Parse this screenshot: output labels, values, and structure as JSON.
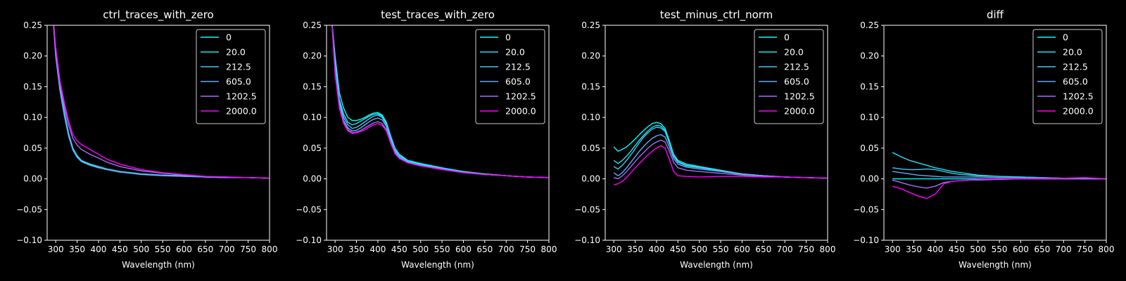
{
  "colors": {
    "background": "#000000",
    "foreground": "#ffffff",
    "legend_edge": "#cccccc"
  },
  "chart_data": [
    {
      "type": "line",
      "title": "ctrl_traces_with_zero",
      "xlabel": "Wavelength (nm)",
      "ylabel": "",
      "xlim": [
        280,
        800
      ],
      "ylim": [
        -0.1,
        0.25
      ],
      "xticks": [
        300,
        350,
        400,
        450,
        500,
        550,
        600,
        650,
        700,
        750,
        800
      ],
      "yticks": [
        -0.1,
        -0.05,
        0.0,
        0.05,
        0.1,
        0.15,
        0.2,
        0.25
      ],
      "xtick_labels": [
        "300",
        "350",
        "400",
        "450",
        "500",
        "550",
        "600",
        "650",
        "700",
        "750",
        "800"
      ],
      "ytick_labels": [
        "−0.10",
        "−0.05",
        "0.00",
        "0.05",
        "0.10",
        "0.15",
        "0.20",
        "0.25"
      ],
      "legend_position": "upper-right",
      "x": [
        290,
        300,
        310,
        320,
        330,
        340,
        350,
        360,
        380,
        400,
        420,
        450,
        500,
        550,
        600,
        650,
        700,
        750,
        800
      ],
      "series": [
        {
          "name": "0",
          "color": "#00ffff",
          "values": [
            0.3,
            0.21,
            0.15,
            0.11,
            0.075,
            0.05,
            0.038,
            0.03,
            0.024,
            0.02,
            0.016,
            0.012,
            0.008,
            0.006,
            0.005,
            0.003,
            0.002,
            0.002,
            0.001
          ]
        },
        {
          "name": "20.0",
          "color": "#1ae5f5",
          "values": [
            0.3,
            0.2,
            0.145,
            0.105,
            0.072,
            0.048,
            0.036,
            0.029,
            0.023,
            0.019,
            0.015,
            0.011,
            0.008,
            0.006,
            0.004,
            0.003,
            0.002,
            0.002,
            0.001
          ]
        },
        {
          "name": "212.5",
          "color": "#40c8f5",
          "values": [
            0.3,
            0.205,
            0.148,
            0.108,
            0.074,
            0.05,
            0.037,
            0.03,
            0.024,
            0.02,
            0.016,
            0.012,
            0.008,
            0.006,
            0.005,
            0.003,
            0.002,
            0.002,
            0.001
          ]
        },
        {
          "name": "605.0",
          "color": "#66a8f5",
          "values": [
            0.3,
            0.2,
            0.143,
            0.103,
            0.07,
            0.047,
            0.035,
            0.028,
            0.022,
            0.018,
            0.015,
            0.011,
            0.007,
            0.005,
            0.004,
            0.003,
            0.002,
            0.002,
            0.001
          ]
        },
        {
          "name": "1202.5",
          "color": "#a070f5",
          "values": [
            0.3,
            0.21,
            0.155,
            0.118,
            0.088,
            0.066,
            0.055,
            0.048,
            0.04,
            0.034,
            0.027,
            0.02,
            0.013,
            0.009,
            0.006,
            0.004,
            0.003,
            0.002,
            0.001
          ]
        },
        {
          "name": "2000.0",
          "color": "#ff00ff",
          "values": [
            0.3,
            0.215,
            0.16,
            0.125,
            0.095,
            0.072,
            0.062,
            0.056,
            0.048,
            0.04,
            0.032,
            0.024,
            0.015,
            0.01,
            0.007,
            0.004,
            0.003,
            0.002,
            0.001
          ]
        }
      ]
    },
    {
      "type": "line",
      "title": "test_traces_with_zero",
      "xlabel": "Wavelength (nm)",
      "ylabel": "",
      "xlim": [
        280,
        800
      ],
      "ylim": [
        -0.1,
        0.25
      ],
      "xticks": [
        300,
        350,
        400,
        450,
        500,
        550,
        600,
        650,
        700,
        750,
        800
      ],
      "yticks": [
        -0.1,
        -0.05,
        0.0,
        0.05,
        0.1,
        0.15,
        0.2,
        0.25
      ],
      "xtick_labels": [
        "300",
        "350",
        "400",
        "450",
        "500",
        "550",
        "600",
        "650",
        "700",
        "750",
        "800"
      ],
      "ytick_labels": [
        "−0.10",
        "−0.05",
        "0.00",
        "0.05",
        "0.10",
        "0.15",
        "0.20",
        "0.25"
      ],
      "legend_position": "upper-right",
      "x": [
        292,
        300,
        310,
        320,
        330,
        340,
        350,
        360,
        370,
        380,
        390,
        400,
        410,
        420,
        430,
        440,
        450,
        470,
        500,
        550,
        600,
        650,
        700,
        750,
        800
      ],
      "series": [
        {
          "name": "0",
          "color": "#00ffff",
          "values": [
            0.26,
            0.2,
            0.14,
            0.115,
            0.1,
            0.095,
            0.095,
            0.097,
            0.1,
            0.104,
            0.107,
            0.108,
            0.104,
            0.092,
            0.07,
            0.05,
            0.04,
            0.03,
            0.025,
            0.018,
            0.012,
            0.008,
            0.005,
            0.003,
            0.002
          ]
        },
        {
          "name": "20.0",
          "color": "#1ae5f5",
          "values": [
            0.26,
            0.19,
            0.13,
            0.105,
            0.092,
            0.088,
            0.09,
            0.094,
            0.098,
            0.102,
            0.105,
            0.106,
            0.102,
            0.09,
            0.068,
            0.048,
            0.038,
            0.029,
            0.024,
            0.017,
            0.011,
            0.008,
            0.005,
            0.003,
            0.002
          ]
        },
        {
          "name": "212.5",
          "color": "#40c8f5",
          "values": [
            0.26,
            0.185,
            0.125,
            0.1,
            0.088,
            0.082,
            0.084,
            0.088,
            0.093,
            0.098,
            0.102,
            0.104,
            0.1,
            0.088,
            0.066,
            0.046,
            0.037,
            0.028,
            0.023,
            0.017,
            0.011,
            0.008,
            0.005,
            0.003,
            0.002
          ]
        },
        {
          "name": "605.0",
          "color": "#66a8f5",
          "values": [
            0.26,
            0.18,
            0.12,
            0.095,
            0.083,
            0.078,
            0.079,
            0.083,
            0.088,
            0.093,
            0.097,
            0.099,
            0.096,
            0.085,
            0.063,
            0.044,
            0.035,
            0.027,
            0.022,
            0.016,
            0.011,
            0.007,
            0.005,
            0.003,
            0.002
          ]
        },
        {
          "name": "1202.5",
          "color": "#a070f5",
          "values": [
            0.26,
            0.175,
            0.118,
            0.092,
            0.08,
            0.075,
            0.076,
            0.079,
            0.083,
            0.087,
            0.091,
            0.093,
            0.09,
            0.08,
            0.06,
            0.042,
            0.034,
            0.026,
            0.021,
            0.016,
            0.01,
            0.007,
            0.005,
            0.003,
            0.002
          ]
        },
        {
          "name": "2000.0",
          "color": "#ff00ff",
          "values": [
            0.26,
            0.17,
            0.115,
            0.09,
            0.078,
            0.074,
            0.075,
            0.077,
            0.08,
            0.084,
            0.088,
            0.09,
            0.087,
            0.078,
            0.058,
            0.041,
            0.033,
            0.026,
            0.021,
            0.015,
            0.01,
            0.007,
            0.005,
            0.003,
            0.002
          ]
        }
      ]
    },
    {
      "type": "line",
      "title": "test_minus_ctrl_norm",
      "xlabel": "Wavelength (nm)",
      "ylabel": "",
      "xlim": [
        280,
        800
      ],
      "ylim": [
        -0.1,
        0.25
      ],
      "xticks": [
        300,
        350,
        400,
        450,
        500,
        550,
        600,
        650,
        700,
        750,
        800
      ],
      "yticks": [
        -0.1,
        -0.05,
        0.0,
        0.05,
        0.1,
        0.15,
        0.2,
        0.25
      ],
      "xtick_labels": [
        "300",
        "350",
        "400",
        "450",
        "500",
        "550",
        "600",
        "650",
        "700",
        "750",
        "800"
      ],
      "ytick_labels": [
        "−0.10",
        "−0.05",
        "0.00",
        "0.05",
        "0.10",
        "0.15",
        "0.20",
        "0.25"
      ],
      "legend_position": "upper-right",
      "x": [
        300,
        310,
        320,
        330,
        340,
        350,
        360,
        370,
        380,
        390,
        400,
        410,
        420,
        430,
        440,
        450,
        470,
        500,
        550,
        600,
        650,
        700,
        750,
        800
      ],
      "series": [
        {
          "name": "0",
          "color": "#00ffff",
          "values": [
            0.052,
            0.045,
            0.048,
            0.052,
            0.058,
            0.065,
            0.072,
            0.079,
            0.085,
            0.09,
            0.092,
            0.09,
            0.082,
            0.062,
            0.04,
            0.03,
            0.024,
            0.02,
            0.014,
            0.008,
            0.005,
            0.003,
            0.002,
            0.001
          ]
        },
        {
          "name": "20.0",
          "color": "#1ae5f5",
          "values": [
            0.03,
            0.025,
            0.03,
            0.037,
            0.045,
            0.054,
            0.063,
            0.071,
            0.078,
            0.084,
            0.087,
            0.086,
            0.079,
            0.06,
            0.038,
            0.028,
            0.022,
            0.019,
            0.013,
            0.008,
            0.005,
            0.003,
            0.002,
            0.001
          ]
        },
        {
          "name": "212.5",
          "color": "#40c8f5",
          "values": [
            0.02,
            0.016,
            0.022,
            0.03,
            0.039,
            0.049,
            0.059,
            0.068,
            0.075,
            0.081,
            0.084,
            0.083,
            0.077,
            0.058,
            0.037,
            0.027,
            0.021,
            0.018,
            0.013,
            0.008,
            0.005,
            0.003,
            0.002,
            0.001
          ]
        },
        {
          "name": "605.0",
          "color": "#66a8f5",
          "values": [
            0.01,
            0.005,
            0.01,
            0.018,
            0.027,
            0.036,
            0.045,
            0.053,
            0.06,
            0.066,
            0.07,
            0.072,
            0.068,
            0.052,
            0.033,
            0.024,
            0.019,
            0.016,
            0.012,
            0.007,
            0.004,
            0.003,
            0.002,
            0.001
          ]
        },
        {
          "name": "1202.5",
          "color": "#a070f5",
          "values": [
            0.002,
            0.0,
            0.005,
            0.012,
            0.02,
            0.028,
            0.036,
            0.043,
            0.05,
            0.056,
            0.06,
            0.063,
            0.06,
            0.045,
            0.027,
            0.018,
            0.014,
            0.012,
            0.009,
            0.006,
            0.004,
            0.003,
            0.002,
            0.001
          ]
        },
        {
          "name": "2000.0",
          "color": "#ff00ff",
          "values": [
            -0.01,
            -0.008,
            -0.004,
            0.002,
            0.01,
            0.018,
            0.025,
            0.032,
            0.039,
            0.045,
            0.05,
            0.054,
            0.05,
            0.032,
            0.012,
            0.005,
            0.004,
            0.003,
            0.004,
            0.004,
            0.003,
            0.003,
            0.002,
            0.001
          ]
        }
      ]
    },
    {
      "type": "line",
      "title": "diff",
      "xlabel": "Wavelength (nm)",
      "ylabel": "",
      "xlim": [
        280,
        800
      ],
      "ylim": [
        -0.1,
        0.25
      ],
      "xticks": [
        300,
        350,
        400,
        450,
        500,
        550,
        600,
        650,
        700,
        750,
        800
      ],
      "yticks": [
        -0.1,
        -0.05,
        0.0,
        0.05,
        0.1,
        0.15,
        0.2,
        0.25
      ],
      "xtick_labels": [
        "300",
        "350",
        "400",
        "450",
        "500",
        "550",
        "600",
        "650",
        "700",
        "750",
        "800"
      ],
      "ytick_labels": [
        "−0.10",
        "−0.05",
        "0.00",
        "0.05",
        "0.10",
        "0.15",
        "0.20",
        "0.25"
      ],
      "legend_position": "upper-right",
      "x": [
        300,
        320,
        340,
        360,
        380,
        400,
        420,
        440,
        460,
        480,
        500,
        550,
        600,
        650,
        700,
        750,
        800
      ],
      "series": [
        {
          "name": "0",
          "color": "#00ffff",
          "values": [
            0.0,
            0.0,
            0.0,
            0.0,
            0.0,
            0.0,
            0.0,
            0.0,
            0.0,
            0.0,
            0.0,
            0.0,
            0.0,
            0.0,
            0.0,
            0.0,
            0.0
          ]
        },
        {
          "name": "20.0",
          "color": "#1ae5f5",
          "values": [
            0.043,
            0.036,
            0.03,
            0.026,
            0.022,
            0.018,
            0.015,
            0.012,
            0.01,
            0.008,
            0.006,
            0.004,
            0.003,
            0.002,
            0.001,
            0.001,
            0.0
          ]
        },
        {
          "name": "212.5",
          "color": "#40c8f5",
          "values": [
            0.018,
            0.016,
            0.015,
            0.015,
            0.016,
            0.015,
            0.012,
            0.009,
            0.007,
            0.006,
            0.005,
            0.004,
            0.003,
            0.002,
            0.001,
            0.001,
            0.0
          ]
        },
        {
          "name": "605.0",
          "color": "#66a8f5",
          "values": [
            0.012,
            0.01,
            0.008,
            0.006,
            0.005,
            0.004,
            0.003,
            0.003,
            0.003,
            0.003,
            0.003,
            0.002,
            0.002,
            0.001,
            0.001,
            0.0,
            0.0
          ]
        },
        {
          "name": "1202.5",
          "color": "#a070f5",
          "values": [
            -0.002,
            -0.006,
            -0.01,
            -0.013,
            -0.015,
            -0.012,
            -0.006,
            -0.004,
            -0.003,
            -0.002,
            -0.002,
            -0.001,
            0.0,
            0.0,
            0.0,
            0.0,
            0.0
          ]
        },
        {
          "name": "2000.0",
          "color": "#ff00ff",
          "values": [
            -0.012,
            -0.016,
            -0.022,
            -0.028,
            -0.032,
            -0.025,
            -0.008,
            -0.004,
            -0.003,
            -0.002,
            -0.001,
            0.0,
            0.0,
            0.001,
            0.001,
            0.002,
            0.0
          ]
        }
      ]
    }
  ]
}
